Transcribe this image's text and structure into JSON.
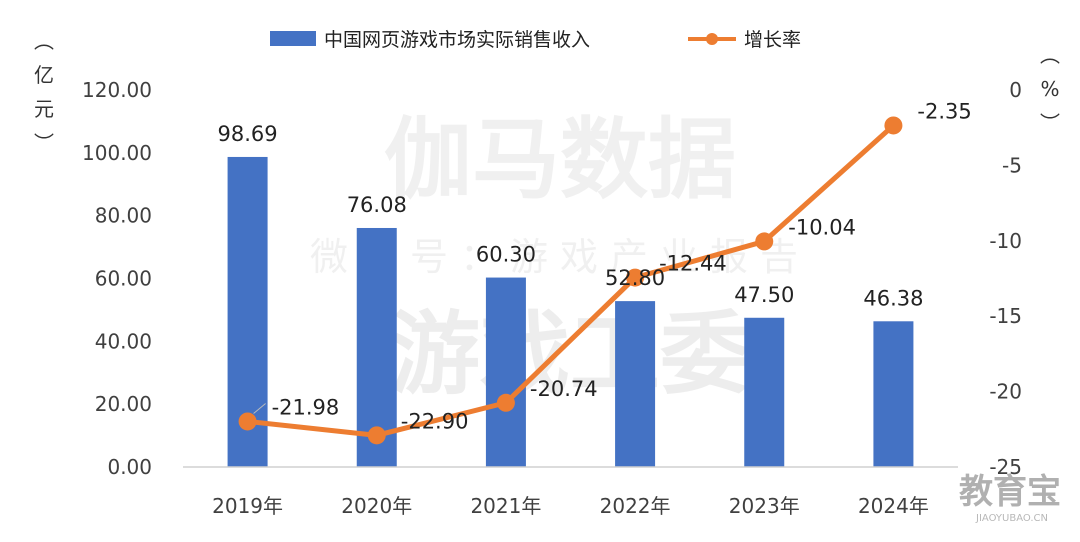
{
  "chart_data": {
    "type": "bar+line",
    "categories": [
      "2019年",
      "2020年",
      "2021年",
      "2022年",
      "2023年",
      "2024年"
    ],
    "series": [
      {
        "name": "中国网页游戏市场实际销售收入",
        "type": "bar",
        "axis": "left",
        "values": [
          98.69,
          76.08,
          60.3,
          52.8,
          47.5,
          46.38
        ],
        "labels": [
          "98.69",
          "76.08",
          "60.30",
          "52.80",
          "47.50",
          "46.38"
        ],
        "color": "#4472C4"
      },
      {
        "name": "增长率",
        "type": "line",
        "axis": "right",
        "values": [
          -21.98,
          -22.9,
          -20.74,
          -12.44,
          -10.04,
          -2.35
        ],
        "labels": [
          "-21.98",
          "-22.90",
          "-20.74",
          "-12.44",
          "-10.04",
          "-2.35"
        ],
        "color": "#ED7D31"
      }
    ],
    "y_left": {
      "label": "（亿元）",
      "ylim": [
        0,
        120
      ],
      "ticks": [
        "0.00",
        "20.00",
        "40.00",
        "60.00",
        "80.00",
        "100.00",
        "120.00"
      ]
    },
    "y_right": {
      "label": "（%）",
      "ylim": [
        -25,
        0
      ],
      "ticks": [
        "-25",
        "-20",
        "-15",
        "-10",
        "-5",
        "0"
      ]
    },
    "legend_position": "top",
    "grid": false
  },
  "watermark": {
    "line1": "伽马数据",
    "line2": "微信号：游戏产业报告",
    "line3": "游戏工委"
  },
  "logo": {
    "text": "教育宝",
    "sub": "JIAOYUBAO.CN"
  }
}
